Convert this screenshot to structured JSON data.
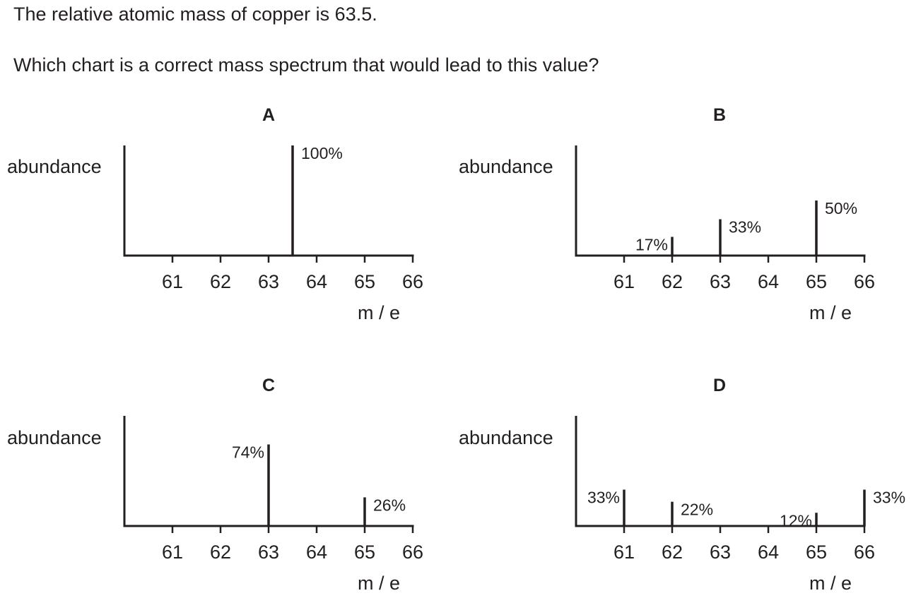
{
  "question": {
    "line1": "The relative atomic mass of copper is 63.5.",
    "line2": "Which chart is a correct mass spectrum that would lead to this value?"
  },
  "chart_data": [
    {
      "type": "bar",
      "title": "A",
      "ylabel": "abundance",
      "xlabel": "m / e",
      "xticks": [
        "61",
        "62",
        "63",
        "64",
        "65",
        "66"
      ],
      "xlim": [
        60,
        66
      ],
      "ylim": [
        0,
        100
      ],
      "series": [
        {
          "x": [
            63.5
          ],
          "values": [
            100
          ],
          "labels": [
            "100%"
          ]
        }
      ]
    },
    {
      "type": "bar",
      "title": "B",
      "ylabel": "abundance",
      "xlabel": "m / e",
      "xticks": [
        "61",
        "62",
        "63",
        "64",
        "65",
        "66"
      ],
      "xlim": [
        60,
        66
      ],
      "ylim": [
        0,
        100
      ],
      "series": [
        {
          "x": [
            62,
            63,
            65
          ],
          "values": [
            17,
            33,
            50
          ],
          "labels": [
            "17%",
            "33%",
            "50%"
          ]
        }
      ]
    },
    {
      "type": "bar",
      "title": "C",
      "ylabel": "abundance",
      "xlabel": "m / e",
      "xticks": [
        "61",
        "62",
        "63",
        "64",
        "65",
        "66"
      ],
      "xlim": [
        60,
        66
      ],
      "ylim": [
        0,
        100
      ],
      "series": [
        {
          "x": [
            63,
            65
          ],
          "values": [
            74,
            26
          ],
          "labels": [
            "74%",
            "26%"
          ]
        }
      ]
    },
    {
      "type": "bar",
      "title": "D",
      "ylabel": "abundance",
      "xlabel": "m / e",
      "xticks": [
        "61",
        "62",
        "63",
        "64",
        "65",
        "66"
      ],
      "xlim": [
        60,
        66
      ],
      "ylim": [
        0,
        100
      ],
      "series": [
        {
          "x": [
            61,
            62,
            65,
            66
          ],
          "values": [
            33,
            22,
            12,
            33
          ],
          "labels": [
            "33%",
            "22%",
            "12%",
            "33%"
          ]
        }
      ]
    }
  ]
}
